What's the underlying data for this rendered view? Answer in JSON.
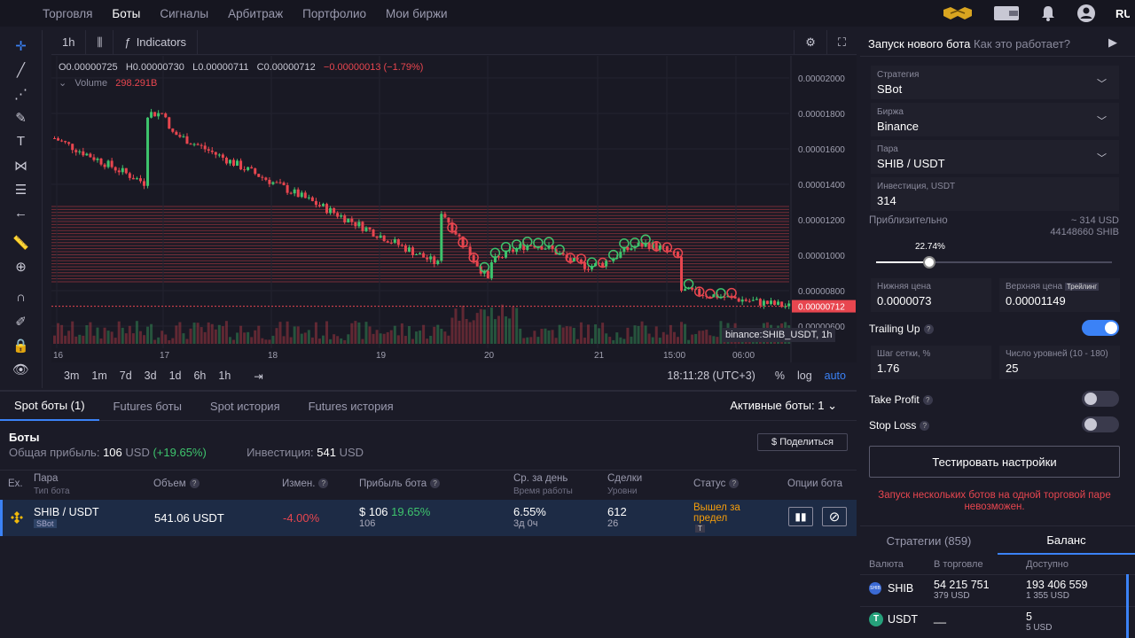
{
  "nav": {
    "items": [
      "Торговля",
      "Боты",
      "Сигналы",
      "Арбитраж",
      "Портфолио",
      "Мои биржи"
    ],
    "active": "Боты",
    "lang": "RU"
  },
  "chart_header": {
    "interval": "1h",
    "indicators": "Indicators"
  },
  "ohlc": {
    "o": "O0.00000725",
    "h": "H0.00000730",
    "l": "L0.00000711",
    "c": "C0.00000712",
    "change": "−0.00000013 (−1.79%)"
  },
  "volume": {
    "label": "Volume",
    "value": "298.291B"
  },
  "price_axis": [
    "0.00002000",
    "0.00001800",
    "0.00001600",
    "0.00001400",
    "0.00001200",
    "0.00001000",
    "0.00000800",
    "0.00000600"
  ],
  "last_price": "0.00000712",
  "time_axis": [
    "16",
    "17",
    "18",
    "19",
    "20",
    "21",
    "15:00",
    "06:00"
  ],
  "symbol_tag": "binance:SHIB_USDT, 1h",
  "periods": [
    "3m",
    "1m",
    "7d",
    "3d",
    "1d",
    "6h",
    "1h"
  ],
  "clock": "18:11:28 (UTC+3)",
  "scale": {
    "pct": "%",
    "log": "log",
    "auto": "auto"
  },
  "bottom_tabs": [
    "Spot боты (1)",
    "Futures боты",
    "Spot история",
    "Futures история"
  ],
  "active_bots": "Активные боты: 1",
  "bots_summary": {
    "title": "Боты",
    "profit_label": "Общая прибыль:",
    "profit_value": "106",
    "profit_cur": "USD",
    "profit_pct": "(+19.65%)",
    "invest_label": "Инвестиция:",
    "invest_value": "541",
    "invest_cur": "USD",
    "share": "$ Поделиться"
  },
  "table": {
    "headers": {
      "ex": "Ex.",
      "pair": "Пара",
      "pair_sub": "Тип бота",
      "volume": "Объем",
      "change": "Измен.",
      "profit": "Прибыль бота",
      "perday": "Ср. за день",
      "perday_sub": "Время работы",
      "deals": "Сделки",
      "deals_sub": "Уровни",
      "status": "Статус",
      "options": "Опции бота"
    },
    "row": {
      "pair": "SHIB / USDT",
      "type": "SBot",
      "volume": "541.06 USDT",
      "change": "-4.00%",
      "profit": "$ 106",
      "profit_pct": "19.65%",
      "profit_sub": "106",
      "perday": "6.55%",
      "runtime": "3д 0ч",
      "deals": "612",
      "levels": "26",
      "status": "Вышел за предел",
      "status_badge": "T"
    }
  },
  "panel": {
    "title": "Запуск нового бота",
    "how": "Как это работает?",
    "strategy_label": "Стратегия",
    "strategy": "SBot",
    "exchange_label": "Биржа",
    "exchange": "Binance",
    "pair_label": "Пара",
    "pair": "SHIB / USDT",
    "invest_label": "Инвестиция, USDT",
    "invest": "314",
    "approx_label": "Приблизительно",
    "approx_usd": "~ 314 USD",
    "approx_shib": "44148660 SHIB",
    "slider_pct": "22.74%",
    "slider_value": 0.2274,
    "lower_label": "Нижняя цена",
    "lower": "0.0000073",
    "upper_label": "Верхняя цена",
    "upper_badge": "Трейлинг",
    "upper": "0.00001149",
    "trailing": "Trailing Up",
    "step_label": "Шаг сетки, %",
    "step": "1.76",
    "levels_label": "Число уровней (10 - 180)",
    "levels": "25",
    "tp": "Take Profit",
    "sl": "Stop Loss",
    "test": "Тестировать настройки",
    "warning": "Запуск нескольких ботов на одной торговой паре невозможен."
  },
  "balance": {
    "tabs": [
      "Стратегии (859)",
      "Баланс"
    ],
    "headers": [
      "Валюта",
      "В торговле",
      "Доступно"
    ],
    "rows": [
      {
        "cur": "SHIB",
        "trade": "54 215 751",
        "trade_usd": "379 USD",
        "avail": "193 406 559",
        "avail_usd": "1 355 USD"
      },
      {
        "cur": "USDT",
        "trade": "__",
        "trade_usd": "",
        "avail": "5",
        "avail_usd": "5 USD"
      }
    ]
  },
  "colors": {
    "accent": "#3b82f6",
    "up": "#3ec46d",
    "down": "#e8464f",
    "bg": "#1b1b27"
  }
}
